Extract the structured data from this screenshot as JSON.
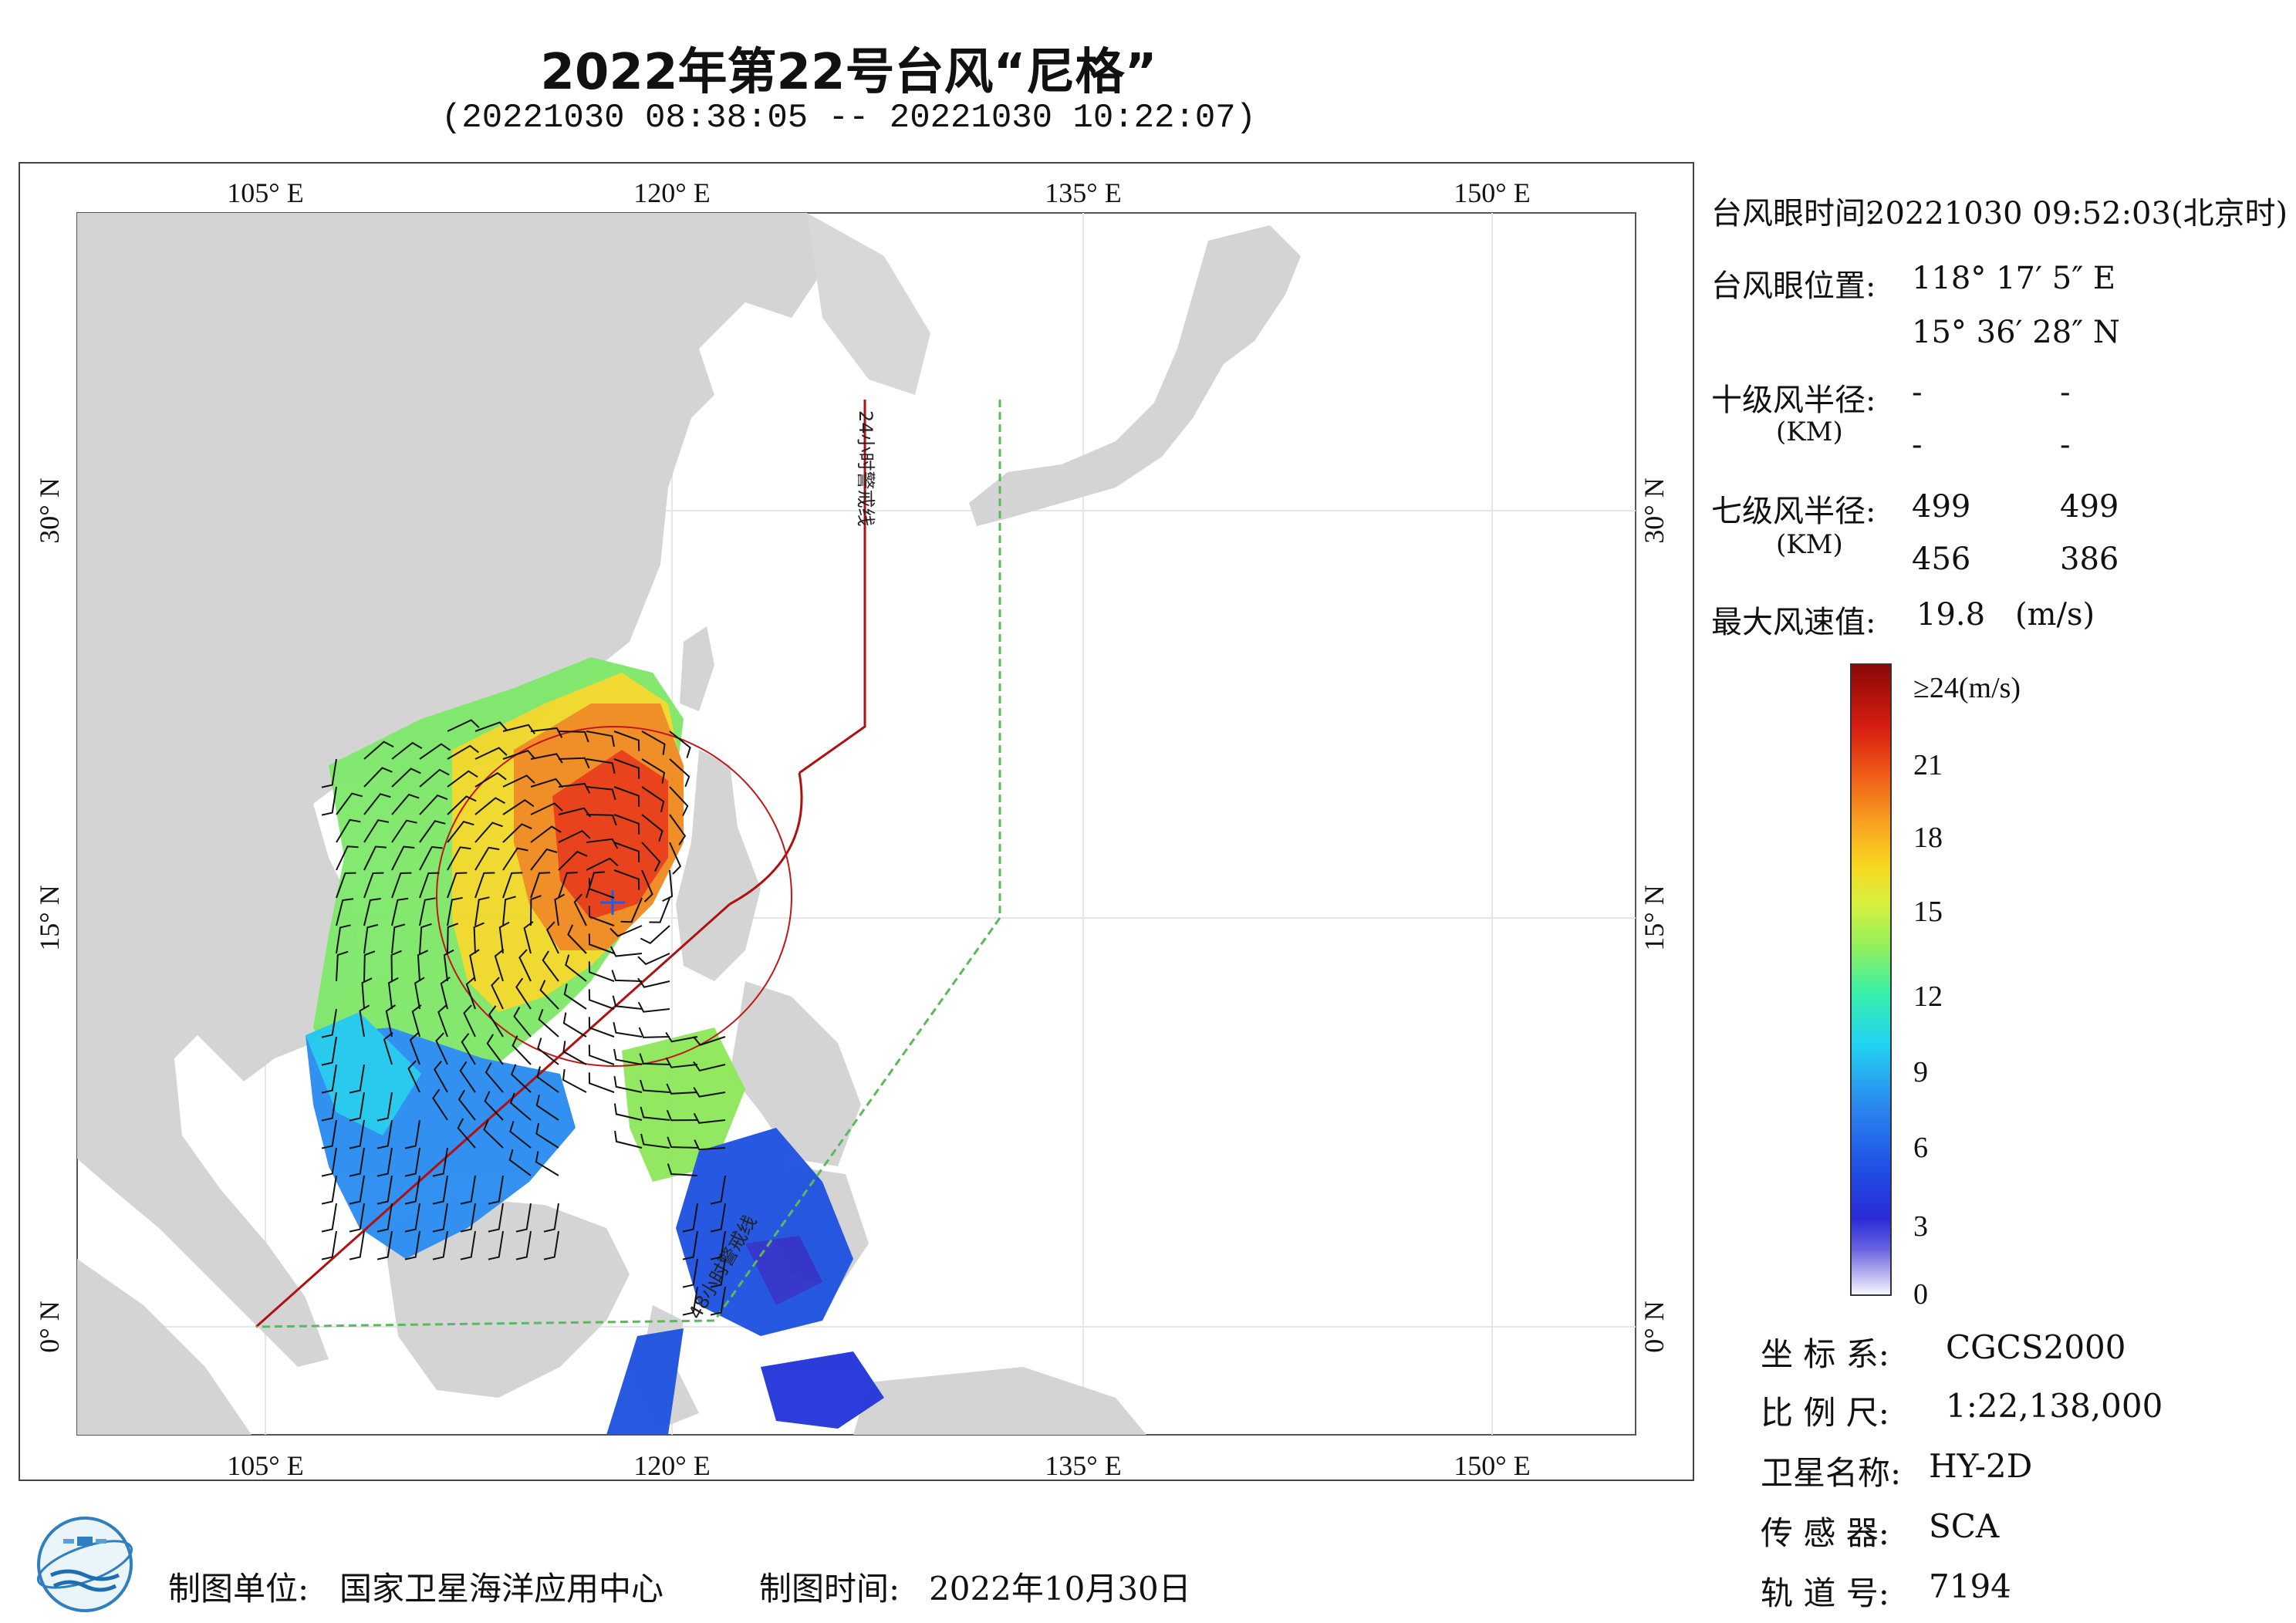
{
  "title": "2022年第22号台风“尼格”",
  "subtitle": "(20221030 08:38:05 -- 20221030 10:22:07)",
  "map": {
    "lon_labels_top": [
      "105° E",
      "120° E",
      "135° E",
      "150° E"
    ],
    "lon_labels_bottom": [
      "105° E",
      "120° E",
      "135° E",
      "150° E"
    ],
    "lat_labels_left": [
      "30° N",
      "15° N",
      "0° N"
    ],
    "lat_labels_right": [
      "30° N",
      "15° N",
      "0° N"
    ],
    "line_label_24h": "24小时警戒线",
    "line_label_48h": "48小时警戒线",
    "colors": {
      "land": "#d4d4d4",
      "sea": "#ffffff",
      "grid": "#e8e8e8",
      "warning_24h": "#b01010",
      "warning_48h": "#5cb85c"
    }
  },
  "info": {
    "eye_time_label": "台风眼时间:",
    "eye_time_value": "20221030 09:52:03(北京时)",
    "eye_pos_label": "台风眼位置:",
    "eye_lon": "118° 17′ 5″ E",
    "eye_lat": "15° 36′ 28″ N",
    "r10_label": "十级风半径:",
    "r10_unit": "(KM)",
    "r10_values": [
      "-",
      "-",
      "-",
      "-"
    ],
    "r7_label": "七级风半径:",
    "r7_unit": "(KM)",
    "r7_values": [
      "499",
      "499",
      "456",
      "386"
    ],
    "max_wind_label": "最大风速值:",
    "max_wind_value": "19.8",
    "max_wind_unit": "(m/s)"
  },
  "colorbar": {
    "top_label": "≥24(m/s)",
    "ticks": [
      "21",
      "18",
      "15",
      "12",
      "9",
      "6",
      "3",
      "0"
    ]
  },
  "meta": {
    "crs_label": "坐 标 系:",
    "crs_value": "CGCS2000",
    "scale_label": "比 例 尺:",
    "scale_value": "1:22,138,000",
    "satellite_label": "卫星名称:",
    "satellite_value": "HY-2D",
    "sensor_label": "传 感 器:",
    "sensor_value": "SCA",
    "orbit_label": "轨 道 号:",
    "orbit_value": "7194"
  },
  "footer": {
    "unit_label": "制图单位:",
    "unit_value": "国家卫星海洋应用中心",
    "time_label": "制图时间:",
    "time_value": "2022年10月30日"
  }
}
